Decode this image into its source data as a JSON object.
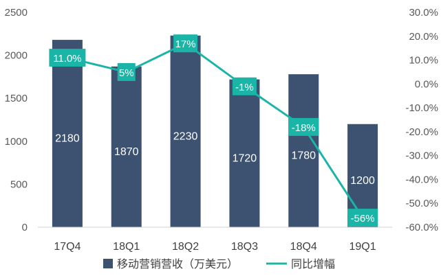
{
  "chart_data": {
    "type": "bar",
    "categories": [
      "17Q4",
      "18Q1",
      "18Q2",
      "18Q3",
      "18Q4",
      "19Q1"
    ],
    "series": [
      {
        "name": "移动营销营收（万美元）",
        "type": "bar",
        "axis": "left",
        "values": [
          2180,
          1870,
          2230,
          1720,
          1780,
          1200
        ],
        "labels": [
          "2180",
          "1870",
          "2230",
          "1720",
          "1780",
          "1200"
        ],
        "color": "#3c5270"
      },
      {
        "name": "同比增幅",
        "type": "line",
        "axis": "right",
        "values": [
          11.0,
          5,
          17,
          -1,
          -18,
          -56
        ],
        "labels": [
          "11.0%",
          "5%",
          "17%",
          "-1%",
          "-18%",
          "-56%"
        ],
        "color": "#1ab5a7"
      }
    ],
    "y_left": {
      "ylim": [
        0,
        2500
      ],
      "ticks": [
        "0",
        "500",
        "1000",
        "1500",
        "2000",
        "2500"
      ]
    },
    "y_right": {
      "ylim": [
        -60,
        30
      ],
      "ticks": [
        "30.0%",
        "20.0%",
        "10.0%",
        "0.0%",
        "-10.0%",
        "-20.0%",
        "-30.0%",
        "-40.0%",
        "-50.0%",
        "-60.0%"
      ]
    },
    "legend_position": "bottom",
    "grid": false
  }
}
